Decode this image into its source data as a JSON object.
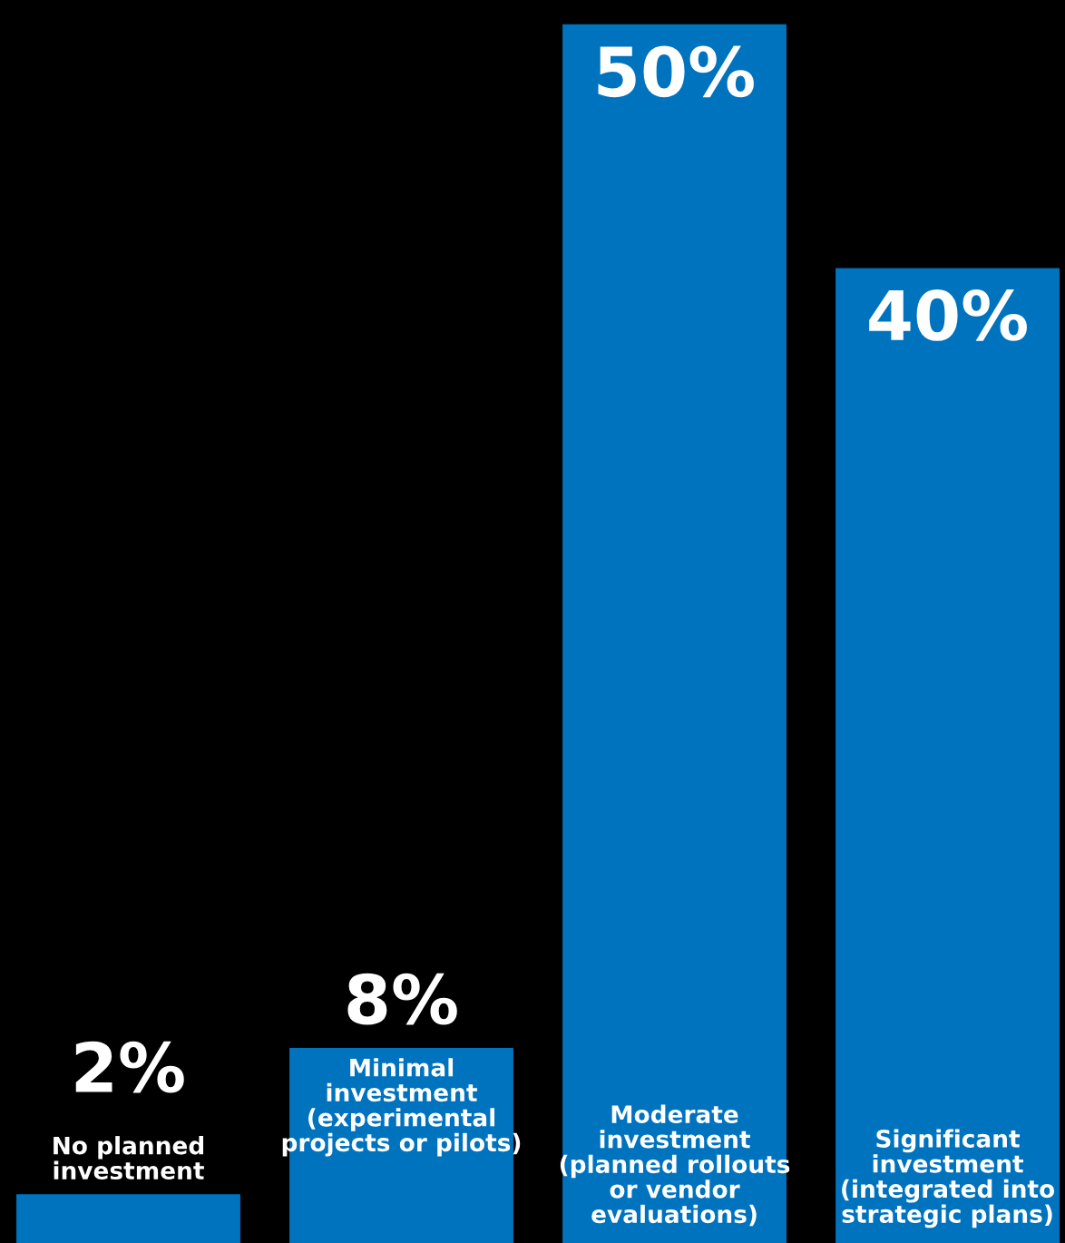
{
  "chart_data": {
    "type": "bar",
    "categories": [
      "No planned investment",
      "Minimal investment (experimental projects or pilots)",
      "Moderate investment (planned rollouts or vendor evaluations)",
      "Significant investment (integrated into strategic plans)"
    ],
    "values": [
      2,
      8,
      50,
      40
    ],
    "value_labels": [
      "2%",
      "8%",
      "50%",
      "40%"
    ],
    "color": "#0073bf"
  }
}
